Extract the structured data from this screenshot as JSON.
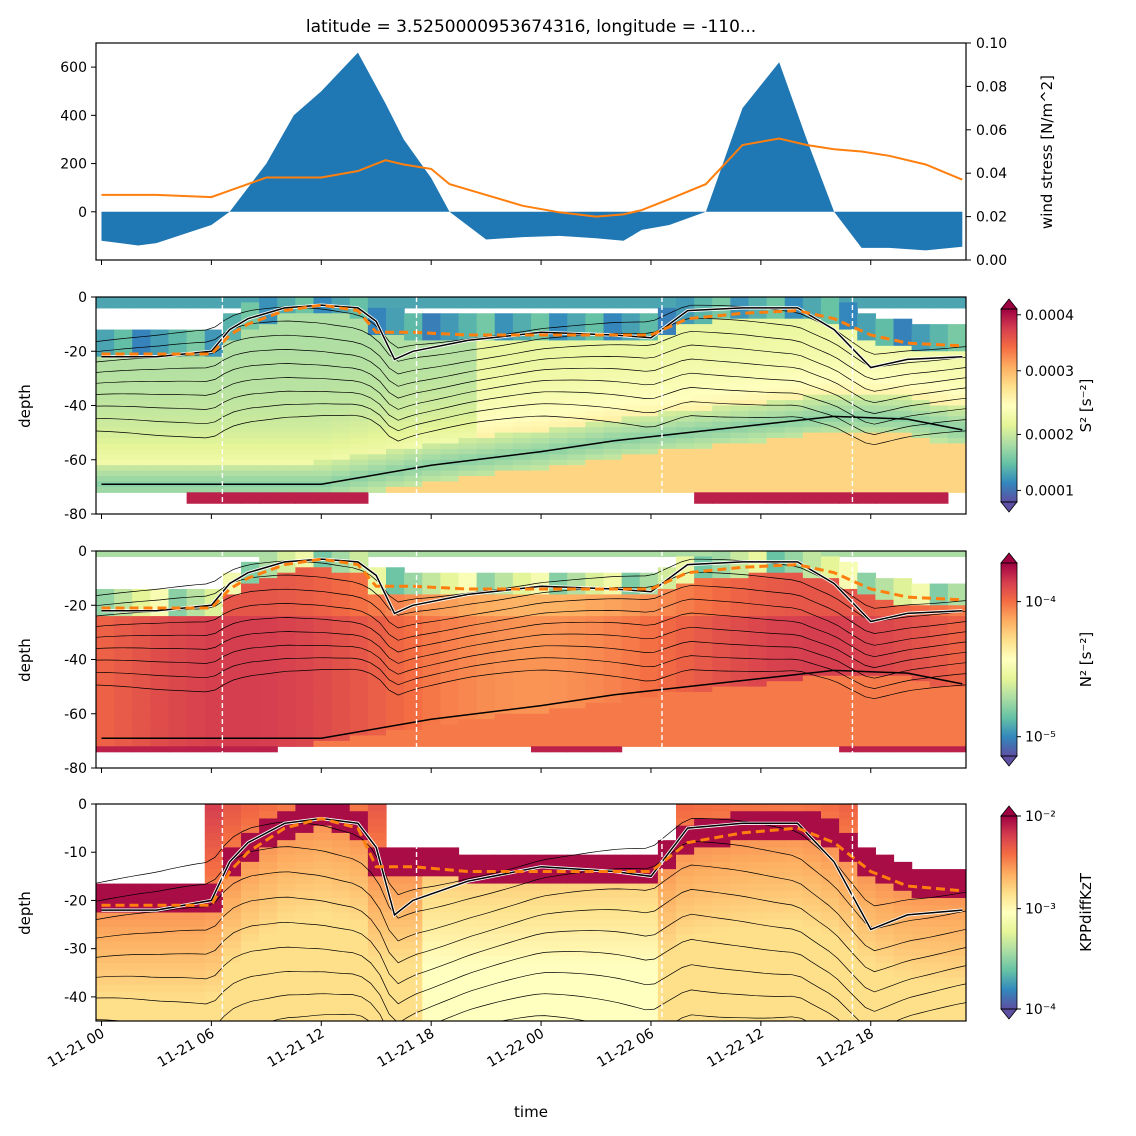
{
  "title": "latitude = 3.5250000953674316, longitude = -110...",
  "xlabel": "time",
  "x_ticks": [
    "11-21 00",
    "11-21 06",
    "11-21 12",
    "11-21 18",
    "11-22 00",
    "11-22 06",
    "11-22 12",
    "11-22 18"
  ],
  "vlines_hours": [
    6.6,
    17.2,
    30.6,
    41.0
  ],
  "chart_data": [
    {
      "type": "area",
      "panel": "top",
      "x_hours": [
        0,
        2,
        3,
        6,
        7,
        9,
        10.5,
        12,
        14,
        15.5,
        16.5,
        18,
        19,
        21,
        23,
        25,
        27,
        28.5,
        29.5,
        31,
        33,
        35,
        37,
        38.5,
        40,
        41.5,
        43,
        45,
        47
      ],
      "series": [
        {
          "kind": "area",
          "values": [
            -120,
            -140,
            -130,
            -55,
            0,
            200,
            400,
            500,
            660,
            450,
            300,
            140,
            0,
            -115,
            -105,
            -100,
            -110,
            -120,
            -75,
            -55,
            0,
            430,
            620,
            300,
            0,
            -150,
            -150,
            -160,
            -145
          ]
        },
        {
          "kind": "line",
          "axis": "right",
          "color": "#ff7f0e",
          "values": [
            0.03,
            0.03,
            0.03,
            0.029,
            0.032,
            0.038,
            0.038,
            0.038,
            0.041,
            0.046,
            0.044,
            0.042,
            0.035,
            0.03,
            0.025,
            0.022,
            0.02,
            0.021,
            0.023,
            0.028,
            0.035,
            0.053,
            0.056,
            0.053,
            0.051,
            0.05,
            0.048,
            0.044,
            0.037
          ]
        }
      ],
      "ylim_left": [
        -200,
        700
      ],
      "yticks_left": [
        0,
        200,
        400,
        600
      ],
      "ylim_right": [
        0.0,
        0.1
      ],
      "yticks_right": [
        "0.00",
        "0.02",
        "0.04",
        "0.06",
        "0.08",
        "0.10"
      ],
      "ylabel_right": "wind stress [N/m^2]",
      "xlim_hours": [
        -0.3,
        47.2
      ]
    },
    {
      "type": "heatmap",
      "panel": "S2",
      "ylabel": "depth",
      "ylim": [
        -80,
        0
      ],
      "yticks": [
        -80,
        -60,
        -40,
        -20,
        0
      ],
      "colorbar_label": "S² [s⁻²]",
      "colorbar_ticks": [
        "0.0001",
        "0.0002",
        "0.0003",
        "0.0004"
      ],
      "colorbar_scale": "linear",
      "mld_hours": [
        0,
        3,
        6,
        7,
        8,
        10,
        12,
        14,
        15,
        16,
        17,
        20,
        24,
        28,
        30,
        32,
        35,
        38,
        40,
        42,
        44,
        47
      ],
      "mld_depth": [
        -21,
        -21,
        -21,
        -14,
        -10,
        -5,
        -3,
        -5,
        -13,
        -13,
        -13,
        -14,
        -14,
        -14,
        -14,
        -8,
        -6,
        -5,
        -8,
        -14,
        -17,
        -18
      ],
      "kpp_depth": [
        -22,
        -22,
        -20,
        -12,
        -8,
        -4,
        -3,
        -4,
        -9,
        -23,
        -20,
        -16,
        -13,
        -14,
        -15,
        -5,
        -4,
        -4,
        -12,
        -26,
        -23,
        -22
      ],
      "deep_line_hours": [
        0,
        12,
        18,
        24,
        28,
        32,
        36,
        40,
        44,
        47
      ],
      "deep_line_depth": [
        -69,
        -69,
        -62,
        -57,
        -53,
        -50,
        -47,
        -44,
        -45,
        -49
      ]
    },
    {
      "type": "heatmap",
      "panel": "N2",
      "ylabel": "depth",
      "ylim": [
        -80,
        0
      ],
      "yticks": [
        -80,
        -60,
        -40,
        -20,
        0
      ],
      "colorbar_label": "N² [s⁻²]",
      "colorbar_ticks": [
        "10⁻⁴",
        "10⁻⁵"
      ],
      "colorbar_scale": "log"
    },
    {
      "type": "heatmap",
      "panel": "KPP",
      "ylabel": "depth",
      "ylim": [
        -45,
        0
      ],
      "yticks": [
        -40,
        -30,
        -20,
        -10,
        0
      ],
      "colorbar_label": "KPPdiffKzT",
      "colorbar_ticks": [
        "10⁻²",
        "10⁻³",
        "10⁻⁴"
      ],
      "colorbar_scale": "log"
    }
  ]
}
